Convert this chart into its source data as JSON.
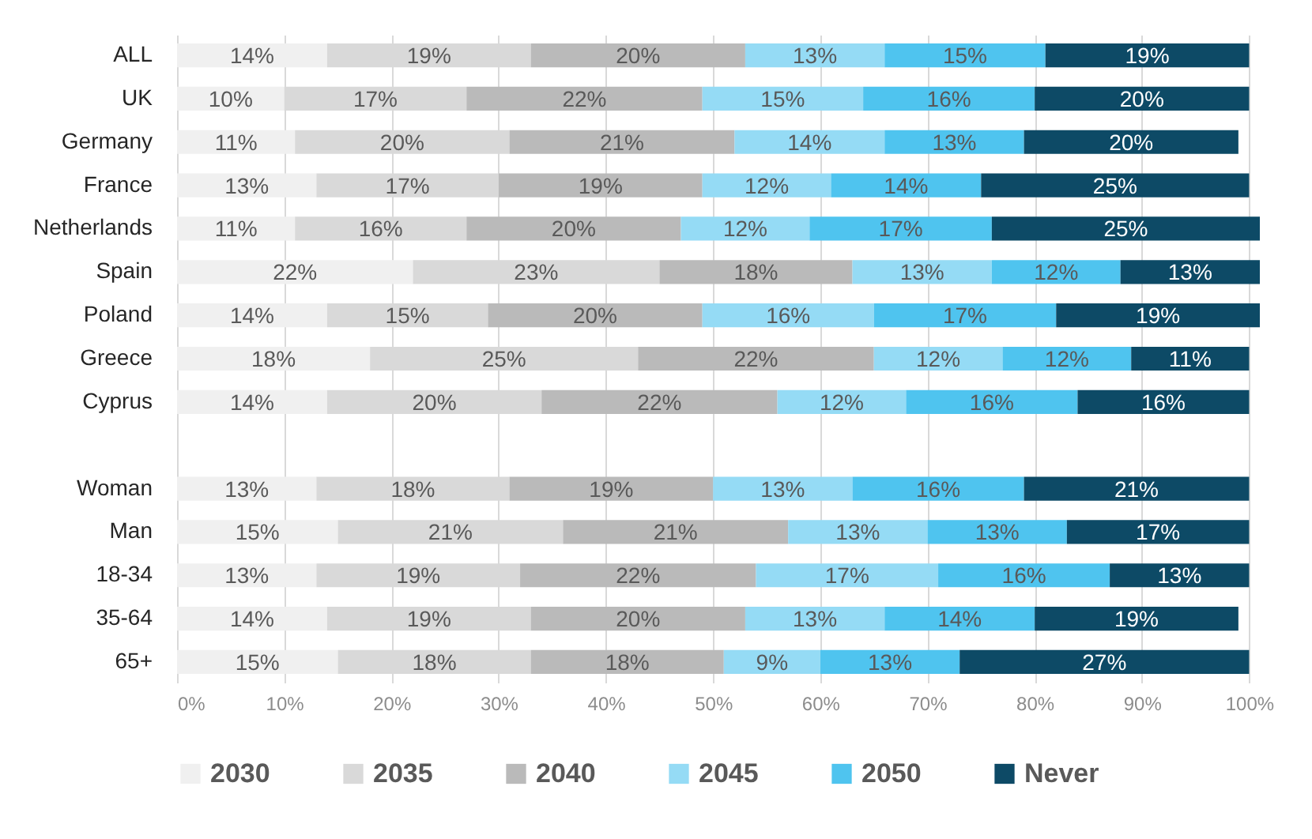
{
  "chart_data": {
    "type": "bar",
    "orientation": "horizontal",
    "stacked": true,
    "categories": [
      "ALL",
      "UK",
      "Germany",
      "France",
      "Netherlands",
      "Spain",
      "Poland",
      "Greece",
      "Cyprus",
      null,
      "Woman",
      "Man",
      "18-34",
      "35-64",
      "65+"
    ],
    "series": [
      {
        "name": "2030",
        "color": "#f0f0f0",
        "values": [
          14,
          10,
          11,
          13,
          11,
          22,
          14,
          18,
          14,
          null,
          13,
          15,
          13,
          14,
          15
        ],
        "value_labels": [
          "14%",
          "10%",
          "11%",
          "13%",
          "11%",
          "22%",
          "14%",
          "18%",
          "14%",
          null,
          "13%",
          "15%",
          "13%",
          "14%",
          "15%"
        ]
      },
      {
        "name": "2035",
        "color": "#d9d9d9",
        "values": [
          19,
          17,
          20,
          17,
          16,
          23,
          15,
          25,
          20,
          null,
          18,
          21,
          19,
          19,
          18
        ],
        "value_labels": [
          "19%",
          "17%",
          "20%",
          "17%",
          "16%",
          "23%",
          "15%",
          "25%",
          "20%",
          null,
          "18%",
          "21%",
          "19%",
          "19%",
          "18%"
        ]
      },
      {
        "name": "2040",
        "color": "#bababa",
        "values": [
          20,
          22,
          21,
          19,
          20,
          18,
          20,
          22,
          22,
          null,
          19,
          21,
          22,
          20,
          18
        ],
        "value_labels": [
          "20%",
          "22%",
          "21%",
          "19%",
          "20%",
          "18%",
          "20%",
          "22%",
          "22%",
          null,
          "19%",
          "21%",
          "22%",
          "20%",
          "18%"
        ]
      },
      {
        "name": "2045",
        "color": "#95dbf5",
        "values": [
          13,
          15,
          14,
          12,
          12,
          13,
          16,
          12,
          12,
          null,
          13,
          13,
          17,
          13,
          9
        ],
        "value_labels": [
          "13%",
          "15%",
          "14%",
          "12%",
          "12%",
          "13%",
          "16%",
          "12%",
          "12%",
          null,
          "13%",
          "13%",
          "17%",
          "13%",
          "9%"
        ]
      },
      {
        "name": "2050",
        "color": "#4fc4ef",
        "values": [
          15,
          16,
          13,
          14,
          17,
          12,
          17,
          12,
          16,
          null,
          16,
          13,
          16,
          14,
          13
        ],
        "value_labels": [
          "15%",
          "16%",
          "13%",
          "14%",
          "17%",
          "12%",
          "17%",
          "12%",
          "16%",
          null,
          "16%",
          "13%",
          "16%",
          "14%",
          "13%"
        ]
      },
      {
        "name": "Never",
        "color": "#0d4a66",
        "values": [
          19,
          20,
          20,
          25,
          25,
          13,
          19,
          11,
          16,
          null,
          21,
          17,
          13,
          19,
          27
        ],
        "value_labels": [
          "19%",
          "20%",
          "20%",
          "25%",
          "25%",
          "13%",
          "19%",
          "11%",
          "16%",
          null,
          "21%",
          "17%",
          "13%",
          "19%",
          "27%"
        ]
      }
    ],
    "xlim": [
      0,
      101
    ],
    "xticks": [
      {
        "value": 0,
        "label": "0%"
      },
      {
        "value": 10,
        "label": "10%"
      },
      {
        "value": 20,
        "label": "20%"
      },
      {
        "value": 30,
        "label": "30%"
      },
      {
        "value": 40,
        "label": "40%"
      },
      {
        "value": 50,
        "label": "50%"
      },
      {
        "value": 60,
        "label": "60%"
      },
      {
        "value": 70,
        "label": "70%"
      },
      {
        "value": 80,
        "label": "80%"
      },
      {
        "value": 90,
        "label": "90%"
      },
      {
        "value": 100,
        "label": "100%"
      }
    ],
    "grid": "x",
    "legend": "bottom"
  }
}
